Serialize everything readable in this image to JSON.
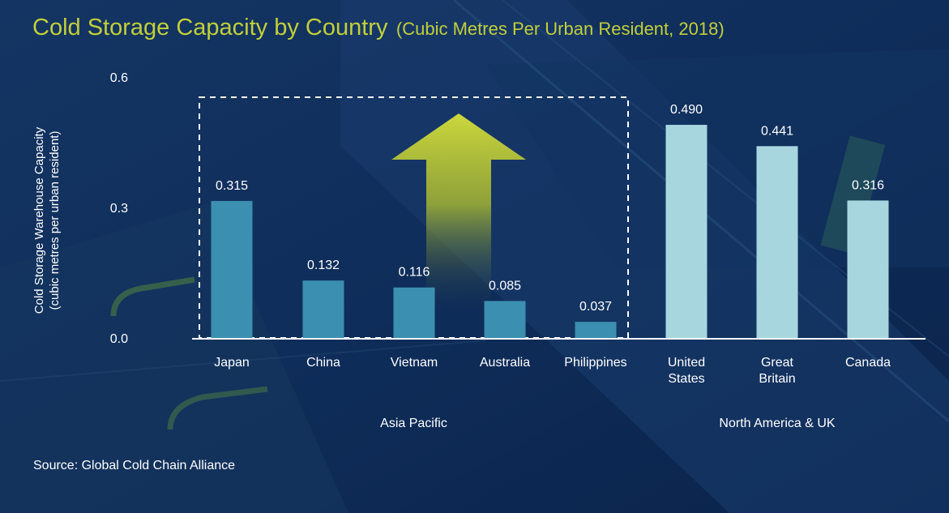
{
  "title": "Cold Storage Capacity by Country",
  "subtitle": "(Cubic Metres Per Urban Resident, 2018)",
  "source": "Source: Global Cold Chain Alliance",
  "colors": {
    "background": "#0d2a55",
    "title": "#c2cf3a",
    "asia_bar": "#3b8fb0",
    "na_bar": "#a8d6df",
    "text": "#ffffff"
  },
  "chart_data": {
    "type": "bar",
    "title": "Cold Storage Capacity by Country",
    "subtitle": "(Cubic Metres Per Urban Resident, 2018)",
    "ylabel": [
      "Cold Storage Warehouse Capacity",
      "(cubic metres per urban resident)"
    ],
    "xlabel": "",
    "ylim": [
      0,
      0.6
    ],
    "yticks": [
      "0.0",
      "0.3",
      "0.6"
    ],
    "categories": [
      [
        "Japan"
      ],
      [
        "China"
      ],
      [
        "Vietnam"
      ],
      [
        "Australia"
      ],
      [
        "Philippines"
      ],
      [
        "United",
        "States"
      ],
      [
        "Great",
        "Britain"
      ],
      [
        "Canada"
      ]
    ],
    "values": [
      0.315,
      0.132,
      0.116,
      0.085,
      0.037,
      0.49,
      0.441,
      0.316
    ],
    "value_labels": [
      "0.315",
      "0.132",
      "0.116",
      "0.085",
      "0.037",
      "0.490",
      "0.441",
      "0.316"
    ],
    "groups": [
      {
        "name": "Asia Pacific",
        "members": [
          0,
          1,
          2,
          3,
          4
        ],
        "color": "#3b8fb0"
      },
      {
        "name": "North America & UK",
        "members": [
          5,
          6,
          7
        ],
        "color": "#a8d6df"
      }
    ],
    "annotations": [
      "dashed box around Asia Pacific with upward arrow"
    ],
    "grid": false,
    "legend": "none"
  }
}
